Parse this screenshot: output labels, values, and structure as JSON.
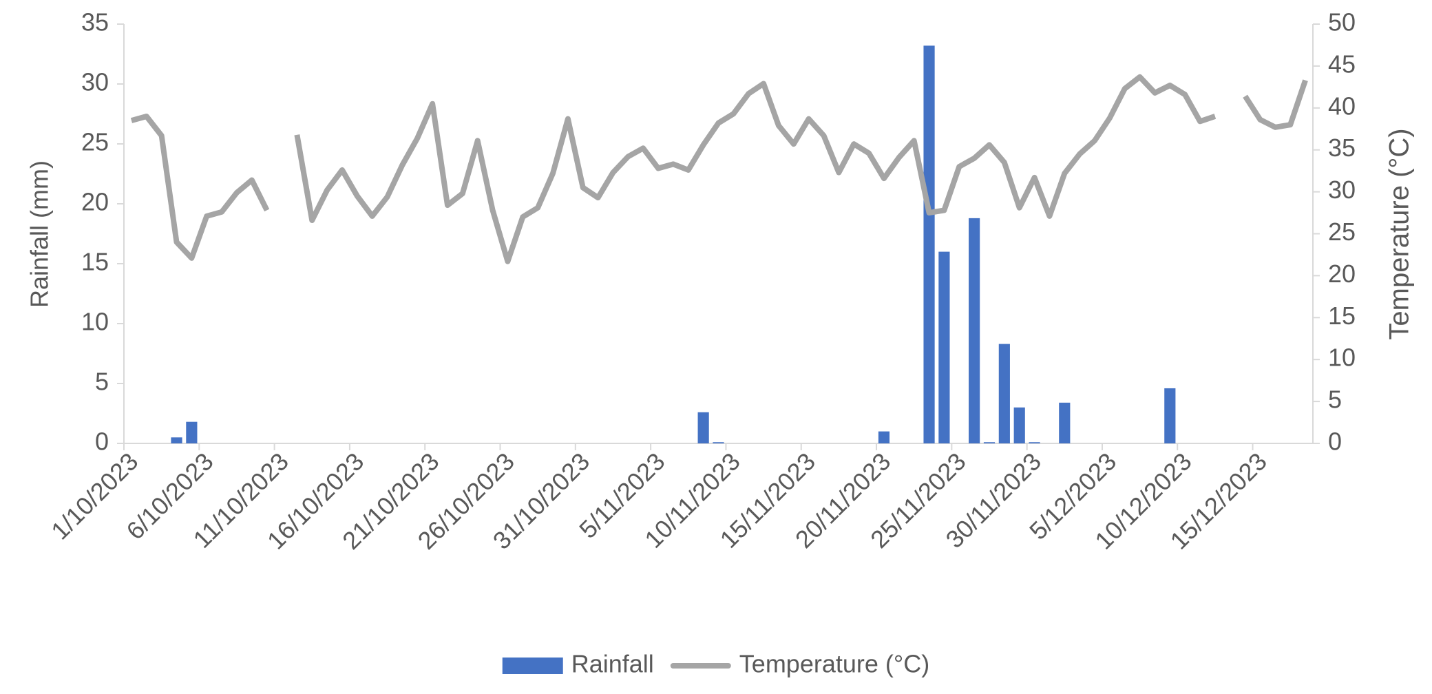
{
  "chart_data": {
    "type": "bar_line",
    "categories": [
      "1/10/2023",
      null,
      null,
      null,
      null,
      "6/10/2023",
      null,
      null,
      null,
      null,
      "11/10/2023",
      null,
      null,
      null,
      null,
      "16/10/2023",
      null,
      null,
      null,
      null,
      "21/10/2023",
      null,
      null,
      null,
      null,
      "26/10/2023",
      null,
      null,
      null,
      null,
      "31/10/2023",
      null,
      null,
      null,
      null,
      "5/11/2023",
      null,
      null,
      null,
      null,
      "10/11/2023",
      null,
      null,
      null,
      null,
      "15/11/2023",
      null,
      null,
      null,
      null,
      "20/11/2023",
      null,
      null,
      null,
      null,
      "25/11/2023",
      null,
      null,
      null,
      null,
      "30/11/2023",
      null,
      null,
      null,
      null,
      "5/12/2023",
      null,
      null,
      null,
      null,
      "10/12/2023",
      null,
      null,
      null,
      null,
      "15/12/2023",
      null,
      null,
      null
    ],
    "series": [
      {
        "name": "Rainfall",
        "color": "#4472c4",
        "type": "bar",
        "values": [
          0,
          0,
          0,
          0.5,
          1.8,
          0,
          0,
          0,
          0,
          0,
          0,
          0,
          0,
          0,
          0,
          0,
          0,
          0,
          0,
          0,
          0,
          0,
          0,
          0,
          0,
          0,
          0,
          0,
          0,
          0,
          0,
          0,
          0,
          0,
          0,
          0,
          0,
          0,
          2.6,
          0.1,
          0,
          0,
          0,
          0,
          0,
          0,
          0,
          0,
          0,
          0,
          1.0,
          0,
          0,
          33.2,
          16.0,
          0,
          18.8,
          0.1,
          8.3,
          3.0,
          0.1,
          0,
          3.4,
          0,
          0,
          0,
          0,
          0,
          0,
          4.6,
          0,
          0,
          0,
          0,
          0,
          0,
          0,
          0,
          0
        ]
      },
      {
        "name": "Temperature (°C)",
        "color": "#a5a5a5",
        "type": "line",
        "axis": "y2",
        "values": [
          38.5,
          39.0,
          36.7,
          24.0,
          22.1,
          27.1,
          27.6,
          29.9,
          31.4,
          27.8,
          null,
          36.8,
          26.6,
          30.2,
          32.6,
          29.5,
          27.1,
          29.4,
          33.2,
          36.4,
          40.5,
          28.4,
          29.8,
          36.1,
          27.8,
          21.7,
          27.0,
          28.1,
          32.2,
          38.7,
          30.5,
          29.3,
          32.3,
          34.2,
          35.2,
          32.8,
          33.3,
          32.6,
          35.6,
          38.2,
          39.3,
          41.7,
          42.9,
          37.9,
          35.7,
          38.7,
          36.7,
          32.3,
          35.7,
          34.6,
          31.6,
          34.1,
          36.1,
          27.5,
          27.8,
          33.0,
          34.0,
          35.6,
          33.5,
          28.1,
          31.7,
          27.1,
          32.2,
          34.5,
          36.1,
          38.8,
          42.3,
          43.7,
          41.8,
          42.7,
          41.6,
          38.4,
          39.0,
          null,
          41.4,
          38.6,
          37.7,
          38.0,
          43.3
        ]
      }
    ],
    "ylabel": "Rainfall (mm)",
    "y2label": "Temperature (°C)",
    "ylim": [
      0,
      35
    ],
    "yticks": [
      0,
      5,
      10,
      15,
      20,
      25,
      30,
      35
    ],
    "y2lim": [
      0,
      50
    ],
    "y2ticks": [
      0,
      5,
      10,
      15,
      20,
      25,
      30,
      35,
      40,
      45,
      50
    ],
    "legend": "bottom"
  }
}
